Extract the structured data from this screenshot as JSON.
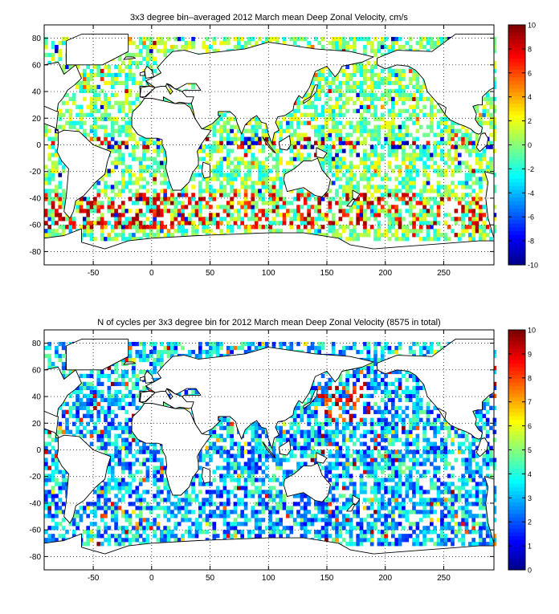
{
  "chart_data": [
    {
      "type": "heatmap",
      "title": "3x3 degree bin–averaged 2012 March mean Deep Zonal Velocity, cm/s",
      "xlabel": "",
      "ylabel": "",
      "xlim": [
        -92,
        293
      ],
      "ylim": [
        -90,
        90
      ],
      "xticks": [
        -50,
        0,
        50,
        100,
        150,
        200,
        250
      ],
      "yticks": [
        80,
        60,
        40,
        20,
        0,
        -20,
        -40,
        -60,
        -80
      ],
      "grid": true,
      "bin_size_deg": 3,
      "colormap": "jet",
      "colorbar": {
        "min": -10,
        "max": 10,
        "ticks": [
          10,
          8,
          6,
          4,
          2,
          0,
          -2,
          -4,
          -6,
          -8,
          -10
        ]
      }
    },
    {
      "type": "heatmap",
      "title": "N of cycles per 3x3 degree bin for 2012 March mean Deep Zonal Velocity (8575 in total)",
      "xlabel": "",
      "ylabel": "",
      "xlim": [
        -92,
        293
      ],
      "ylim": [
        -90,
        90
      ],
      "xticks": [
        -50,
        0,
        50,
        100,
        150,
        200,
        250
      ],
      "yticks": [
        80,
        60,
        40,
        20,
        0,
        -20,
        -40,
        -60,
        -80
      ],
      "grid": true,
      "bin_size_deg": 3,
      "total_cycles": 8575,
      "colormap": "jet",
      "colorbar": {
        "min": 0,
        "max": 10,
        "ticks": [
          10,
          9,
          8,
          7,
          6,
          5,
          4,
          3,
          2,
          1,
          0
        ]
      }
    }
  ]
}
